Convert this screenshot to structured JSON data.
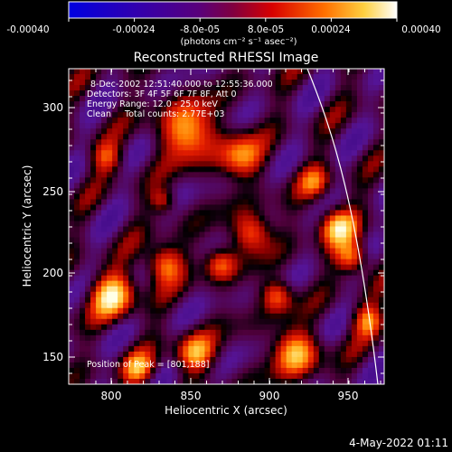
{
  "colorbar": {
    "tick_labels": [
      "-0.00040",
      "-0.00024",
      "-8.0e-05",
      "8.0e-05",
      "0.00024",
      "0.00040"
    ],
    "unit_label": "(photons cm⁻² s⁻¹ asec⁻²)",
    "range": [
      -0.0004,
      0.0004
    ]
  },
  "image": {
    "title": "Reconstructed RHESSI Image",
    "info_lines": [
      "8-Dec-2002 12:51:40.000 to 12:55:36.000",
      "Detectors: 3F 4F 5F 6F 7F 8F, Att 0",
      "Energy Range: 12.0 - 25.0 keV",
      "Clean     Total counts: 2.77E+03"
    ],
    "peak_label": "Position of Peak = [801,188]"
  },
  "axes": {
    "xlabel": "Heliocentric X (arcsec)",
    "ylabel": "Heliocentric Y (arcsec)",
    "x_ticks": [
      "800",
      "850",
      "900",
      "950"
    ],
    "y_ticks": [
      "150",
      "200",
      "250",
      "300"
    ]
  },
  "footer": {
    "date": "4-May-2022 01:11"
  },
  "colors": {
    "background": "#000000",
    "limb": "#ffffff"
  }
}
